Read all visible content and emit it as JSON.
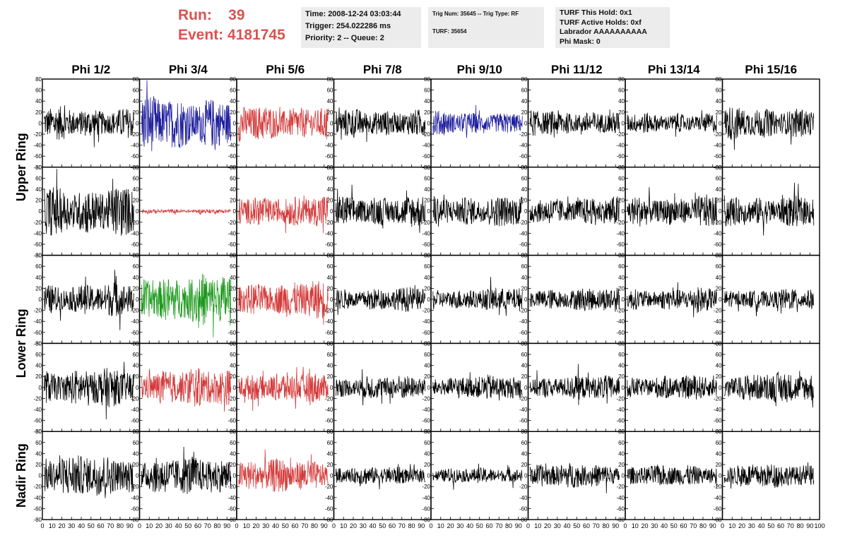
{
  "header": {
    "run_label": "Run:",
    "run_value": "39",
    "event_label": "Event:",
    "event_value": "4181745",
    "time": "Time: 2008-12-24 03:03:44",
    "trigger": "Trigger: 254.022286 ms",
    "priority": "Priority: 2 -- Queue: 2",
    "trig_num": "Trig Num: 35645 -- Trig Type: RF",
    "turf": "TURF: 35654",
    "turf_this_hold": "TURF This Hold: 0x1",
    "turf_active_holds": "TURF Active Holds: 0xf",
    "labrador": "Labrador AAAAAAAAAA",
    "phi_mask": "Phi Mask: 0"
  },
  "colors": {
    "black": "#000000",
    "blue": "#1f1f9e",
    "red": "#d43a3a",
    "green": "#1e9a1e",
    "header_red": "#d9534f"
  },
  "chart_data": {
    "type": "line",
    "columns": [
      "Phi 1/2",
      "Phi 3/4",
      "Phi 5/6",
      "Phi 7/8",
      "Phi 9/10",
      "Phi 11/12",
      "Phi 13/14",
      "Phi 15/16"
    ],
    "row_groups": [
      {
        "label": "Upper Ring",
        "rows": [
          0,
          1
        ]
      },
      {
        "label": "Lower Ring",
        "rows": [
          2,
          3
        ]
      },
      {
        "label": "Nadir Ring",
        "rows": [
          4
        ]
      }
    ],
    "xlim": [
      0,
      100
    ],
    "ylim": [
      -80,
      80
    ],
    "x_ticks": [
      0,
      10,
      20,
      30,
      40,
      50,
      60,
      70,
      80,
      90,
      100
    ],
    "y_ticks": [
      -80,
      -60,
      -40,
      -20,
      0,
      20,
      40,
      60,
      80
    ],
    "panel_color": [
      [
        "black",
        "blue",
        "red",
        "black",
        "blue",
        "black",
        "black",
        "black"
      ],
      [
        "black",
        "red",
        "red",
        "black",
        "black",
        "black",
        "black",
        "black"
      ],
      [
        "black",
        "green",
        "red",
        "black",
        "black",
        "black",
        "black",
        "black"
      ],
      [
        "black",
        "red",
        "red",
        "black",
        "black",
        "black",
        "black",
        "black"
      ],
      [
        "black",
        "black",
        "red",
        "black",
        "black",
        "black",
        "black",
        "black"
      ]
    ],
    "panel_amplitude": [
      [
        22,
        38,
        25,
        20,
        16,
        18,
        14,
        22
      ],
      [
        35,
        3,
        22,
        22,
        22,
        20,
        22,
        22
      ],
      [
        22,
        35,
        25,
        16,
        16,
        16,
        16,
        14
      ],
      [
        25,
        25,
        20,
        16,
        16,
        16,
        16,
        20
      ],
      [
        28,
        25,
        22,
        12,
        10,
        16,
        14,
        16
      ]
    ]
  }
}
